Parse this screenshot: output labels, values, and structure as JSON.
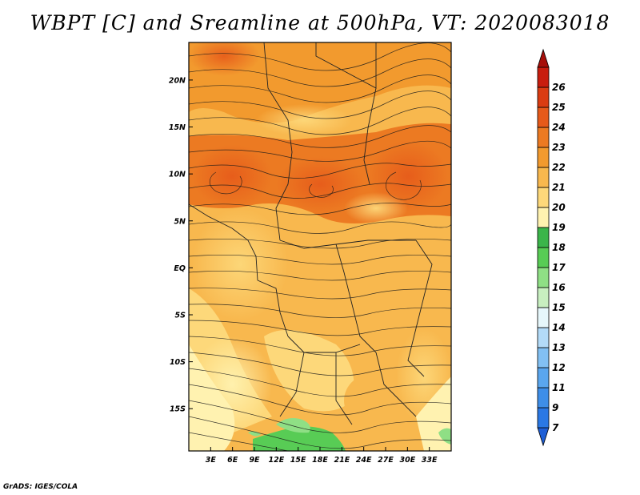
{
  "title": "WBPT [C] and Sreamline at 500hPa, VT: 2020083018",
  "credit": "GrADS: IGES/COLA",
  "map": {
    "lon_range": [
      0,
      36
    ],
    "lat_range": [
      -19.5,
      24
    ],
    "lat_ticks": [
      {
        "lat": 20,
        "label": "20N"
      },
      {
        "lat": 15,
        "label": "15N"
      },
      {
        "lat": 10,
        "label": "10N"
      },
      {
        "lat": 5,
        "label": "5N"
      },
      {
        "lat": 0,
        "label": "EQ"
      },
      {
        "lat": -5,
        "label": "5S"
      },
      {
        "lat": -10,
        "label": "10S"
      },
      {
        "lat": -15,
        "label": "15S"
      }
    ],
    "lon_ticks": [
      {
        "lon": 3,
        "label": "3E"
      },
      {
        "lon": 6,
        "label": "6E"
      },
      {
        "lon": 9,
        "label": "9E"
      },
      {
        "lon": 12,
        "label": "12E"
      },
      {
        "lon": 15,
        "label": "15E"
      },
      {
        "lon": 18,
        "label": "18E"
      },
      {
        "lon": 21,
        "label": "21E"
      },
      {
        "lon": 24,
        "label": "24E"
      },
      {
        "lon": 27,
        "label": "27E"
      },
      {
        "lon": 30,
        "label": "30E"
      },
      {
        "lon": 33,
        "label": "33E"
      }
    ]
  },
  "colorbar": {
    "levels": [
      "7",
      "9",
      "11",
      "12",
      "13",
      "14",
      "15",
      "16",
      "17",
      "18",
      "19",
      "20",
      "21",
      "22",
      "23",
      "24",
      "25",
      "26"
    ],
    "colors": [
      "#1f5fd6",
      "#2a78e4",
      "#3e8ee8",
      "#5aa6ee",
      "#82c0f3",
      "#b3dbf8",
      "#e6f7fb",
      "#c8efc0",
      "#8fdf85",
      "#58cc55",
      "#3bb54a",
      "#fff2b0",
      "#fdd87a",
      "#f8b84e",
      "#f29a2e",
      "#ec7a22",
      "#e65a1a",
      "#da3c12",
      "#c81d0e",
      "#a60f0a"
    ]
  }
}
